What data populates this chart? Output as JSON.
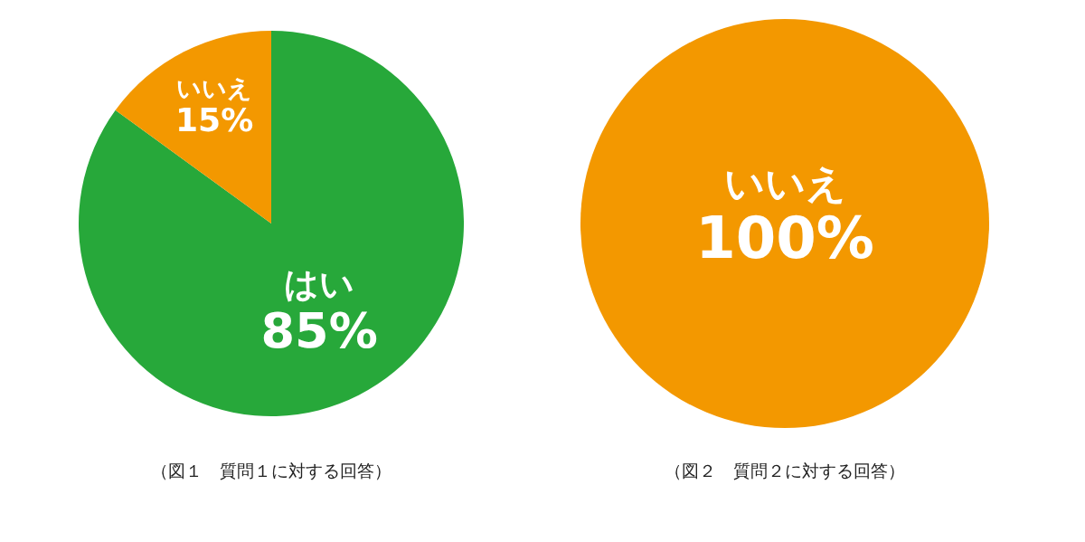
{
  "chart_data": [
    {
      "type": "pie",
      "categories": [
        "はい",
        "いいえ"
      ],
      "values": [
        85,
        15
      ],
      "colors": [
        "#27a83a",
        "#f39800"
      ],
      "value_labels": [
        "85%",
        "15%"
      ],
      "annotations": [
        "（図１　質問１に対する回答）"
      ]
    },
    {
      "type": "pie",
      "categories": [
        "いいえ"
      ],
      "values": [
        100
      ],
      "colors": [
        "#f39800"
      ],
      "value_labels": [
        "100%"
      ],
      "annotations": [
        "（図２　質問２に対する回答）"
      ]
    }
  ]
}
